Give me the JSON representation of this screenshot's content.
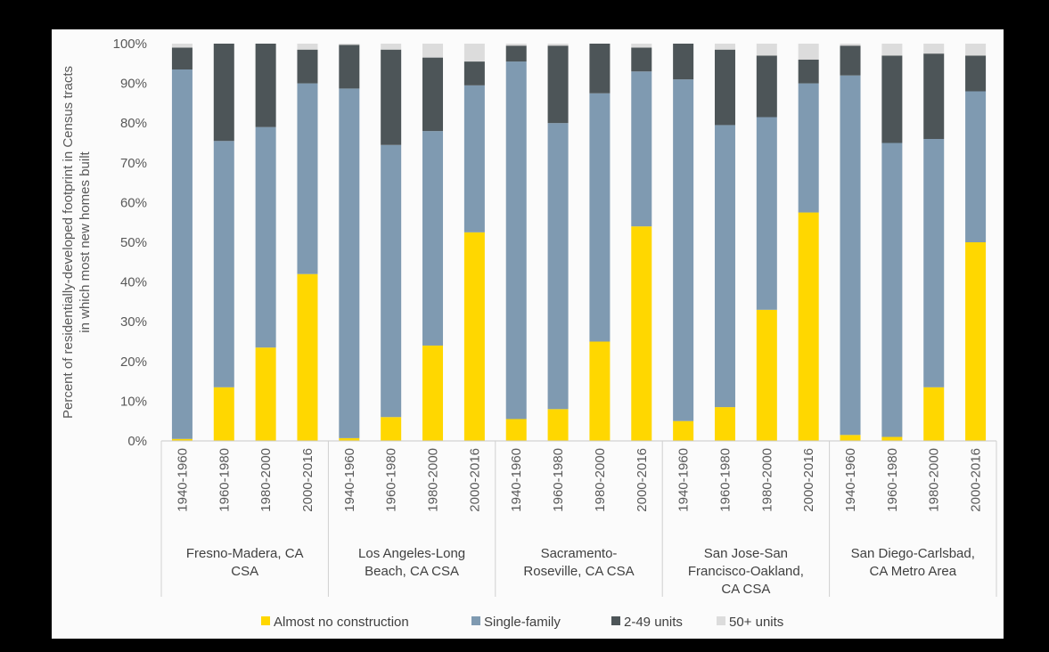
{
  "chart_data": {
    "type": "bar",
    "stacked": true,
    "title": "",
    "xlabel": "",
    "ylabel": "Percent of residentially-developed footprint in Census tracts in which most new homes built",
    "ylim": [
      0,
      100
    ],
    "yticks": [
      "0%",
      "10%",
      "20%",
      "30%",
      "40%",
      "50%",
      "60%",
      "70%",
      "80%",
      "90%",
      "100%"
    ],
    "grid": false,
    "legend_position": "bottom",
    "groups": [
      {
        "label": "Fresno-Madera, CA CSA",
        "label_lines": [
          "Fresno-Madera, CA",
          "CSA"
        ],
        "periods": [
          "1940-1960",
          "1960-1980",
          "1980-2000",
          "2000-2016"
        ]
      },
      {
        "label": "Los Angeles-Long Beach, CA CSA",
        "label_lines": [
          "Los Angeles-Long",
          "Beach, CA CSA"
        ],
        "periods": [
          "1940-1960",
          "1960-1980",
          "1980-2000",
          "2000-2016"
        ]
      },
      {
        "label": "Sacramento-Roseville, CA CSA",
        "label_lines": [
          "Sacramento-",
          "Roseville, CA CSA"
        ],
        "periods": [
          "1940-1960",
          "1960-1980",
          "1980-2000",
          "2000-2016"
        ]
      },
      {
        "label": "San Jose-San Francisco-Oakland, CA CSA",
        "label_lines": [
          "San Jose-San",
          "Francisco-Oakland,",
          "CA CSA"
        ],
        "periods": [
          "1940-1960",
          "1960-1980",
          "1980-2000",
          "2000-2016"
        ]
      },
      {
        "label": "San Diego-Carlsbad, CA Metro Area",
        "label_lines": [
          "San Diego-Carlsbad,",
          "CA Metro Area"
        ],
        "periods": [
          "1940-1960",
          "1960-1980",
          "1980-2000",
          "2000-2016"
        ]
      }
    ],
    "series": [
      {
        "name": "Almost no construction",
        "color": "#ffd700",
        "values": [
          0.5,
          13.5,
          23.5,
          42,
          0.7,
          6,
          24,
          52.5,
          5.5,
          8,
          25,
          54,
          5,
          8.5,
          33,
          57.5,
          1.5,
          1,
          13.5,
          50
        ]
      },
      {
        "name": "Single-family",
        "color": "#7f9ab1",
        "values": [
          93,
          62,
          55.5,
          48,
          88,
          68.5,
          54,
          37,
          90,
          72,
          62.5,
          39,
          86,
          71,
          48.5,
          32.5,
          90.5,
          74,
          62.5,
          38
        ]
      },
      {
        "name": "2-49 units",
        "color": "#4d5558",
        "values": [
          5.5,
          24.5,
          21,
          8.5,
          11,
          24,
          18.5,
          6,
          4,
          19.5,
          12.5,
          6,
          9,
          19,
          15.5,
          6,
          7.5,
          22,
          21.5,
          9
        ]
      },
      {
        "name": "50+ units",
        "color": "#dcdcdc",
        "values": [
          1,
          0,
          0,
          1.5,
          0.3,
          1.5,
          3.5,
          4.5,
          0.5,
          0.5,
          0,
          1,
          0,
          1.5,
          3,
          4,
          0.5,
          3,
          2.5,
          3
        ]
      }
    ]
  }
}
